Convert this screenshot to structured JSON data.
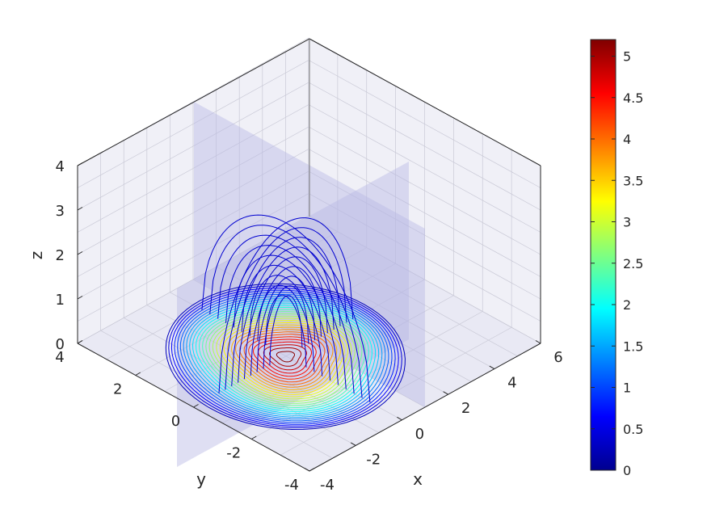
{
  "chart_data": {
    "type": "contour3d",
    "title": "",
    "xlabel": "x",
    "ylabel": "y",
    "zlabel": "z",
    "xlim": [
      -4,
      6
    ],
    "ylim": [
      -4,
      4
    ],
    "zlim": [
      0,
      4
    ],
    "x_ticks": [
      "-4",
      "-2",
      "0",
      "2",
      "4",
      "6"
    ],
    "y_ticks": [
      "-4",
      "-2",
      "0",
      "2",
      "4"
    ],
    "z_ticks": [
      "0",
      "1",
      "2",
      "3",
      "4"
    ],
    "grid": true,
    "colormap": "jet",
    "colorbar": {
      "range": [
        0,
        5.2
      ],
      "ticks": [
        "0",
        "0.5",
        "1",
        "1.5",
        "2",
        "2.5",
        "3",
        "3.5",
        "4",
        "4.5",
        "5"
      ],
      "placement": "right"
    },
    "slice_planes": [
      {
        "orientation": "constant-x",
        "x": 0
      },
      {
        "orientation": "constant-y",
        "y": 0
      }
    ],
    "floor_contours": {
      "center": [
        0,
        0
      ],
      "level_count": 30
    },
    "wall_contours": {
      "domes_per_plane": 9,
      "max_height": 3
    }
  }
}
